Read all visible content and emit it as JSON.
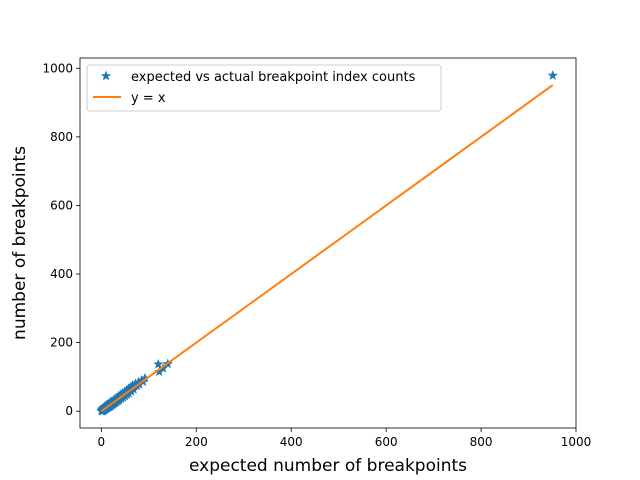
{
  "chart_data": {
    "type": "scatter",
    "xlabel": "expected number of breakpoints",
    "ylabel": "number of breakpoints",
    "xlim": [
      -45,
      1000
    ],
    "ylim": [
      -49,
      1030
    ],
    "x_ticks": [
      0,
      200,
      400,
      600,
      800,
      1000
    ],
    "y_ticks": [
      0,
      200,
      400,
      600,
      800,
      1000
    ],
    "grid": false,
    "legend_position": "top-left",
    "series": [
      {
        "name": "expected vs actual breakpoint index counts",
        "kind": "scatter",
        "marker": "star",
        "color": "#1f77b4",
        "points": [
          [
            0,
            0
          ],
          [
            1,
            2
          ],
          [
            1,
            0
          ],
          [
            2,
            3
          ],
          [
            2,
            5
          ],
          [
            3,
            1
          ],
          [
            3,
            6
          ],
          [
            4,
            2
          ],
          [
            4,
            8
          ],
          [
            5,
            4
          ],
          [
            5,
            9
          ],
          [
            6,
            3
          ],
          [
            6,
            10
          ],
          [
            7,
            6
          ],
          [
            7,
            12
          ],
          [
            8,
            5
          ],
          [
            8,
            13
          ],
          [
            9,
            8
          ],
          [
            10,
            7
          ],
          [
            10,
            15
          ],
          [
            11,
            10
          ],
          [
            12,
            9
          ],
          [
            12,
            17
          ],
          [
            13,
            12
          ],
          [
            14,
            11
          ],
          [
            14,
            19
          ],
          [
            15,
            14
          ],
          [
            16,
            12
          ],
          [
            16,
            22
          ],
          [
            17,
            15
          ],
          [
            18,
            13
          ],
          [
            18,
            24
          ],
          [
            19,
            17
          ],
          [
            20,
            16
          ],
          [
            20,
            26
          ],
          [
            21,
            19
          ],
          [
            22,
            18
          ],
          [
            22,
            28
          ],
          [
            23,
            21
          ],
          [
            24,
            20
          ],
          [
            25,
            30
          ],
          [
            26,
            22
          ],
          [
            27,
            24
          ],
          [
            28,
            33
          ],
          [
            29,
            25
          ],
          [
            30,
            28
          ],
          [
            31,
            36
          ],
          [
            32,
            27
          ],
          [
            33,
            31
          ],
          [
            34,
            40
          ],
          [
            35,
            30
          ],
          [
            36,
            34
          ],
          [
            37,
            44
          ],
          [
            38,
            33
          ],
          [
            40,
            38
          ],
          [
            41,
            48
          ],
          [
            42,
            36
          ],
          [
            44,
            42
          ],
          [
            45,
            52
          ],
          [
            46,
            40
          ],
          [
            48,
            46
          ],
          [
            49,
            56
          ],
          [
            50,
            44
          ],
          [
            52,
            50
          ],
          [
            53,
            60
          ],
          [
            54,
            48
          ],
          [
            56,
            55
          ],
          [
            57,
            65
          ],
          [
            58,
            52
          ],
          [
            60,
            60
          ],
          [
            62,
            70
          ],
          [
            63,
            58
          ],
          [
            65,
            66
          ],
          [
            66,
            75
          ],
          [
            68,
            64
          ],
          [
            70,
            72
          ],
          [
            72,
            80
          ],
          [
            75,
            74
          ],
          [
            78,
            84
          ],
          [
            80,
            78
          ],
          [
            85,
            90
          ],
          [
            88,
            86
          ],
          [
            92,
            96
          ],
          [
            120,
            137
          ],
          [
            122,
            115
          ],
          [
            130,
            125
          ],
          [
            140,
            138
          ],
          [
            951,
            979
          ]
        ]
      },
      {
        "name": "y = x",
        "kind": "line",
        "color": "#ff7f0e",
        "points": [
          [
            0,
            0
          ],
          [
            951,
            951
          ]
        ]
      }
    ]
  }
}
